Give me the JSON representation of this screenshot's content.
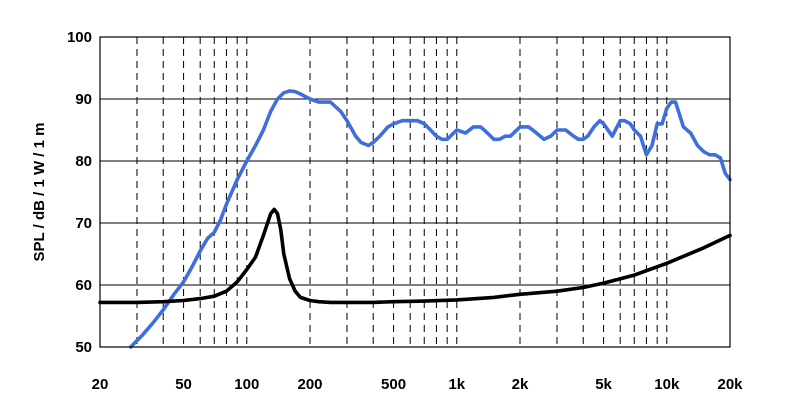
{
  "chart_data": {
    "type": "line",
    "title": "",
    "xlabel": "",
    "ylabel": "SPL / dB / 1 W / 1 m",
    "x_scale": "log",
    "xlim": [
      20,
      20000
    ],
    "ylim": [
      50,
      100
    ],
    "x_tick_values": [
      20,
      50,
      100,
      200,
      500,
      1000,
      2000,
      5000,
      10000,
      20000
    ],
    "x_tick_labels": [
      "20",
      "50",
      "100",
      "200",
      "500",
      "1k",
      "2k",
      "5k",
      "10k",
      "20k"
    ],
    "y_ticks": [
      50,
      60,
      70,
      80,
      90,
      100
    ],
    "minor_x_gridlines": [
      30,
      40,
      60,
      70,
      80,
      90,
      300,
      400,
      600,
      700,
      800,
      900,
      3000,
      4000,
      6000,
      7000,
      8000,
      9000
    ],
    "grid": true,
    "legend": "none",
    "series": [
      {
        "color": "#3f6fdc",
        "x": [
          28,
          32,
          36,
          40,
          45,
          50,
          55,
          60,
          65,
          70,
          75,
          80,
          90,
          100,
          110,
          120,
          130,
          140,
          150,
          160,
          170,
          180,
          200,
          220,
          250,
          280,
          300,
          330,
          350,
          380,
          400,
          430,
          470,
          500,
          550,
          600,
          650,
          700,
          750,
          800,
          850,
          900,
          1000,
          1100,
          1200,
          1300,
          1400,
          1500,
          1600,
          1700,
          1800,
          2000,
          2200,
          2400,
          2600,
          2800,
          3000,
          3300,
          3600,
          3800,
          4000,
          4200,
          4500,
          4800,
          5000,
          5500,
          6000,
          6300,
          6700,
          7000,
          7500,
          8000,
          8500,
          9000,
          9500,
          10000,
          10500,
          11000,
          11500,
          12000,
          13000,
          14000,
          15000,
          16000,
          17000,
          18000,
          19000,
          20000
        ],
        "values": [
          50,
          52,
          54,
          56,
          58.5,
          60.5,
          63,
          65.5,
          67.5,
          68.5,
          70.5,
          73,
          77,
          80,
          82.5,
          85,
          88,
          90,
          91,
          91.3,
          91.2,
          90.8,
          90,
          89.5,
          89.5,
          88,
          86.5,
          84,
          83,
          82.5,
          83,
          84,
          85.5,
          86,
          86.5,
          86.5,
          86.5,
          86,
          85,
          84,
          83.5,
          83.5,
          85,
          84.5,
          85.5,
          85.5,
          84.5,
          83.5,
          83.5,
          84,
          84,
          85.5,
          85.5,
          84.5,
          83.5,
          84,
          85,
          85,
          84,
          83.5,
          83.5,
          84,
          85.5,
          86.5,
          86,
          84,
          86.5,
          86.5,
          86,
          85,
          84,
          81,
          82.5,
          86,
          86,
          88.5,
          89.5,
          89.5,
          87.5,
          85.5,
          84.5,
          82.5,
          81.5,
          81,
          81,
          80.5,
          78,
          77
        ]
      },
      {
        "color": "#000000",
        "x": [
          20,
          30,
          40,
          50,
          60,
          70,
          80,
          90,
          100,
          110,
          120,
          130,
          135,
          140,
          145,
          150,
          160,
          170,
          180,
          200,
          220,
          250,
          300,
          400,
          500,
          700,
          1000,
          1500,
          2000,
          3000,
          4000,
          5000,
          7000,
          10000,
          15000,
          20000
        ],
        "values": [
          57.2,
          57.2,
          57.3,
          57.5,
          57.8,
          58.2,
          59,
          60.5,
          62.5,
          64.5,
          68,
          71.5,
          72.2,
          71.5,
          69,
          65,
          61,
          59,
          58,
          57.5,
          57.3,
          57.2,
          57.2,
          57.2,
          57.3,
          57.4,
          57.6,
          58,
          58.5,
          59,
          59.6,
          60.3,
          61.6,
          63.5,
          66,
          68
        ]
      }
    ]
  }
}
